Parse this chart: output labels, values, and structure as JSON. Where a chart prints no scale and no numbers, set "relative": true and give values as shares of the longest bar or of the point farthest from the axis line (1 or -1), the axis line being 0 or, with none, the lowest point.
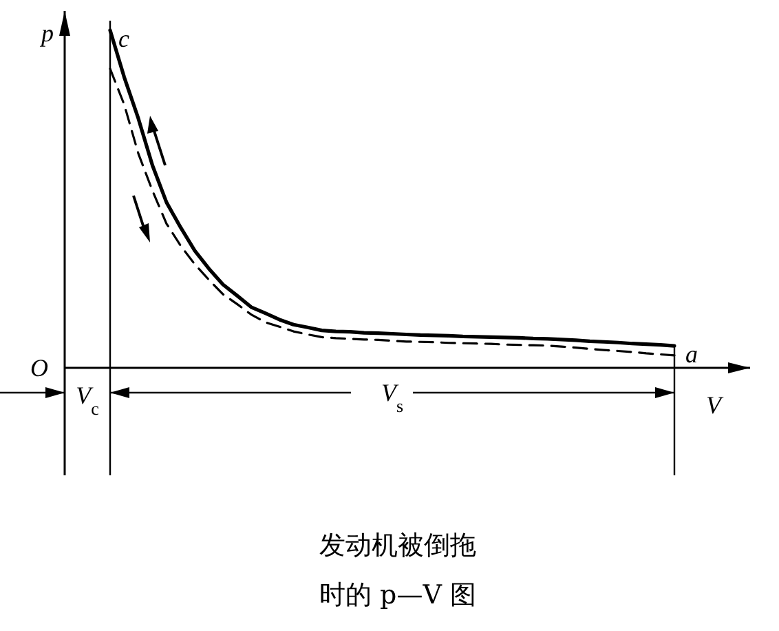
{
  "chart_data": {
    "type": "line",
    "relative": true,
    "title": "发动机被倒拖时的 p—V 图",
    "xlabel": "V",
    "ylabel": "p",
    "grid": false,
    "categories": [
      null,
      null,
      null,
      null,
      null,
      null,
      null,
      null,
      null,
      null,
      null,
      null,
      null,
      null,
      null,
      null,
      null,
      null,
      null,
      null,
      null,
      null,
      null,
      null,
      null,
      null,
      null,
      null,
      null,
      null,
      null,
      null,
      null,
      null,
      null,
      null,
      null,
      null,
      null,
      null,
      null
    ],
    "series": [
      {
        "color": "#000000",
        "line_style": "solid",
        "values": [
          1.0,
          0.861,
          0.739,
          0.6,
          0.49,
          0.416,
          0.347,
          0.294,
          0.247,
          0.214,
          0.18,
          0.162,
          0.143,
          0.128,
          0.12,
          0.111,
          0.108,
          0.107,
          0.104,
          0.103,
          0.101,
          0.099,
          0.097,
          0.096,
          0.095,
          0.093,
          0.092,
          0.091,
          0.09,
          0.089,
          0.087,
          0.086,
          0.084,
          0.082,
          0.079,
          0.077,
          0.075,
          0.072,
          0.07,
          0.068,
          0.065
        ]
      },
      {
        "color": "#000000",
        "line_style": "dashed",
        "values": [
          0.886,
          0.78,
          0.635,
          0.525,
          0.427,
          0.362,
          0.307,
          0.261,
          0.218,
          0.189,
          0.158,
          0.135,
          0.122,
          0.108,
          0.099,
          0.091,
          0.088,
          0.086,
          0.084,
          0.083,
          0.08,
          0.078,
          0.077,
          0.076,
          0.074,
          0.073,
          0.072,
          0.071,
          0.069,
          0.068,
          0.067,
          0.066,
          0.063,
          0.06,
          0.056,
          0.053,
          0.05,
          0.047,
          0.043,
          0.04,
          0.037
        ]
      }
    ],
    "annotations": [
      "c",
      "a",
      "O",
      "V$_{c}$",
      "V$_{s}$"
    ]
  }
}
